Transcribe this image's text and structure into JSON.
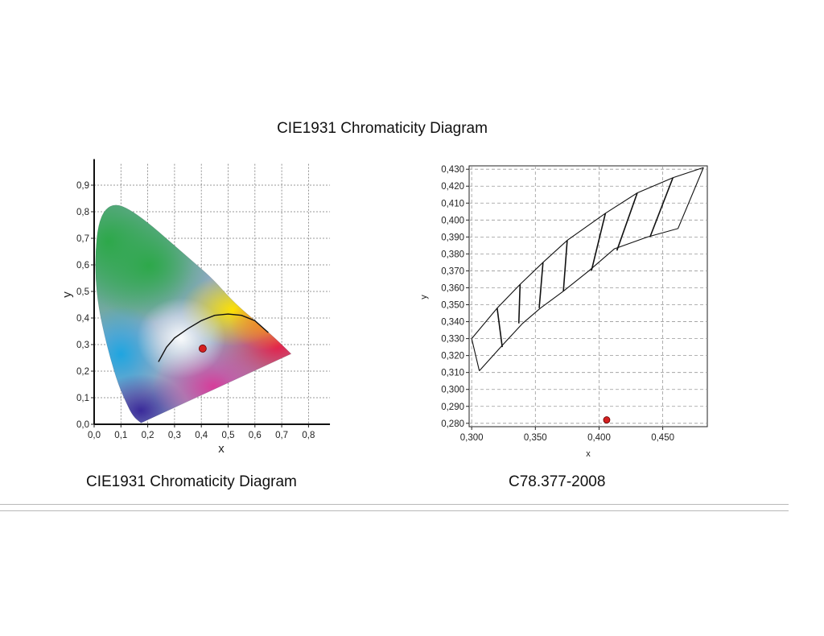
{
  "page": {
    "title": "CIE1931 Chromaticity Diagram",
    "caption_left": "CIE1931 Chromaticity Diagram",
    "caption_right": "C78.377-2008"
  },
  "chart_data": [
    {
      "type": "scatter",
      "xlabel": "x",
      "ylabel": "y",
      "xlim": [
        0.0,
        0.88
      ],
      "ylim": [
        0.0,
        0.98
      ],
      "xticks": [
        "0,0",
        "0,1",
        "0,2",
        "0,3",
        "0,4",
        "0,5",
        "0,6",
        "0,7",
        "0,8"
      ],
      "yticks": [
        "0,0",
        "0,1",
        "0,2",
        "0,3",
        "0,4",
        "0,5",
        "0,6",
        "0,7",
        "0,8",
        "0,9"
      ],
      "grid": true,
      "spectral_locus": [
        [
          0.175,
          0.005
        ],
        [
          0.145,
          0.03
        ],
        [
          0.12,
          0.08
        ],
        [
          0.09,
          0.15
        ],
        [
          0.06,
          0.25
        ],
        [
          0.035,
          0.35
        ],
        [
          0.015,
          0.45
        ],
        [
          0.005,
          0.55
        ],
        [
          0.005,
          0.65
        ],
        [
          0.015,
          0.75
        ],
        [
          0.04,
          0.81
        ],
        [
          0.08,
          0.83
        ],
        [
          0.13,
          0.81
        ],
        [
          0.2,
          0.76
        ],
        [
          0.28,
          0.69
        ],
        [
          0.36,
          0.62
        ],
        [
          0.44,
          0.55
        ],
        [
          0.52,
          0.46
        ],
        [
          0.6,
          0.39
        ],
        [
          0.68,
          0.32
        ],
        [
          0.735,
          0.265
        ]
      ],
      "planckian_locus": [
        [
          0.24,
          0.235
        ],
        [
          0.27,
          0.29
        ],
        [
          0.3,
          0.325
        ],
        [
          0.35,
          0.36
        ],
        [
          0.4,
          0.39
        ],
        [
          0.45,
          0.41
        ],
        [
          0.5,
          0.415
        ],
        [
          0.55,
          0.41
        ],
        [
          0.6,
          0.39
        ],
        [
          0.65,
          0.345
        ]
      ],
      "point": {
        "x": 0.405,
        "y": 0.285,
        "color": "#d42020"
      }
    },
    {
      "type": "scatter",
      "xlabel": "x",
      "ylabel": "y",
      "xlim": [
        0.298,
        0.485
      ],
      "ylim": [
        0.278,
        0.432
      ],
      "xticks": [
        "0,300",
        "0,350",
        "0,400",
        "0,450"
      ],
      "yticks": [
        "0,280",
        "0,290",
        "0,300",
        "0,310",
        "0,320",
        "0,330",
        "0,340",
        "0,350",
        "0,360",
        "0,370",
        "0,380",
        "0,390",
        "0,400",
        "0,410",
        "0,420",
        "0,430"
      ],
      "grid": true,
      "upper_boundary": [
        [
          0.3,
          0.33
        ],
        [
          0.32,
          0.348
        ],
        [
          0.338,
          0.362
        ],
        [
          0.356,
          0.375
        ],
        [
          0.375,
          0.388
        ],
        [
          0.405,
          0.404
        ],
        [
          0.43,
          0.416
        ],
        [
          0.458,
          0.425
        ],
        [
          0.482,
          0.431
        ]
      ],
      "lower_boundary": [
        [
          0.306,
          0.311
        ],
        [
          0.324,
          0.326
        ],
        [
          0.34,
          0.339
        ],
        [
          0.354,
          0.348
        ],
        [
          0.372,
          0.358
        ],
        [
          0.392,
          0.37
        ],
        [
          0.412,
          0.383
        ],
        [
          0.438,
          0.39
        ],
        [
          0.462,
          0.395
        ],
        [
          0.482,
          0.431
        ]
      ],
      "quadrangle_dividers": [
        [
          [
            0.32,
            0.348
          ],
          [
            0.324,
            0.325
          ]
        ],
        [
          [
            0.338,
            0.362
          ],
          [
            0.337,
            0.339
          ]
        ],
        [
          [
            0.356,
            0.375
          ],
          [
            0.353,
            0.348
          ]
        ],
        [
          [
            0.375,
            0.388
          ],
          [
            0.372,
            0.358
          ]
        ],
        [
          [
            0.405,
            0.404
          ],
          [
            0.394,
            0.37
          ]
        ],
        [
          [
            0.43,
            0.416
          ],
          [
            0.414,
            0.382
          ]
        ],
        [
          [
            0.458,
            0.425
          ],
          [
            0.44,
            0.39
          ]
        ]
      ],
      "point": {
        "x": 0.406,
        "y": 0.282,
        "color": "#d42020"
      }
    }
  ]
}
